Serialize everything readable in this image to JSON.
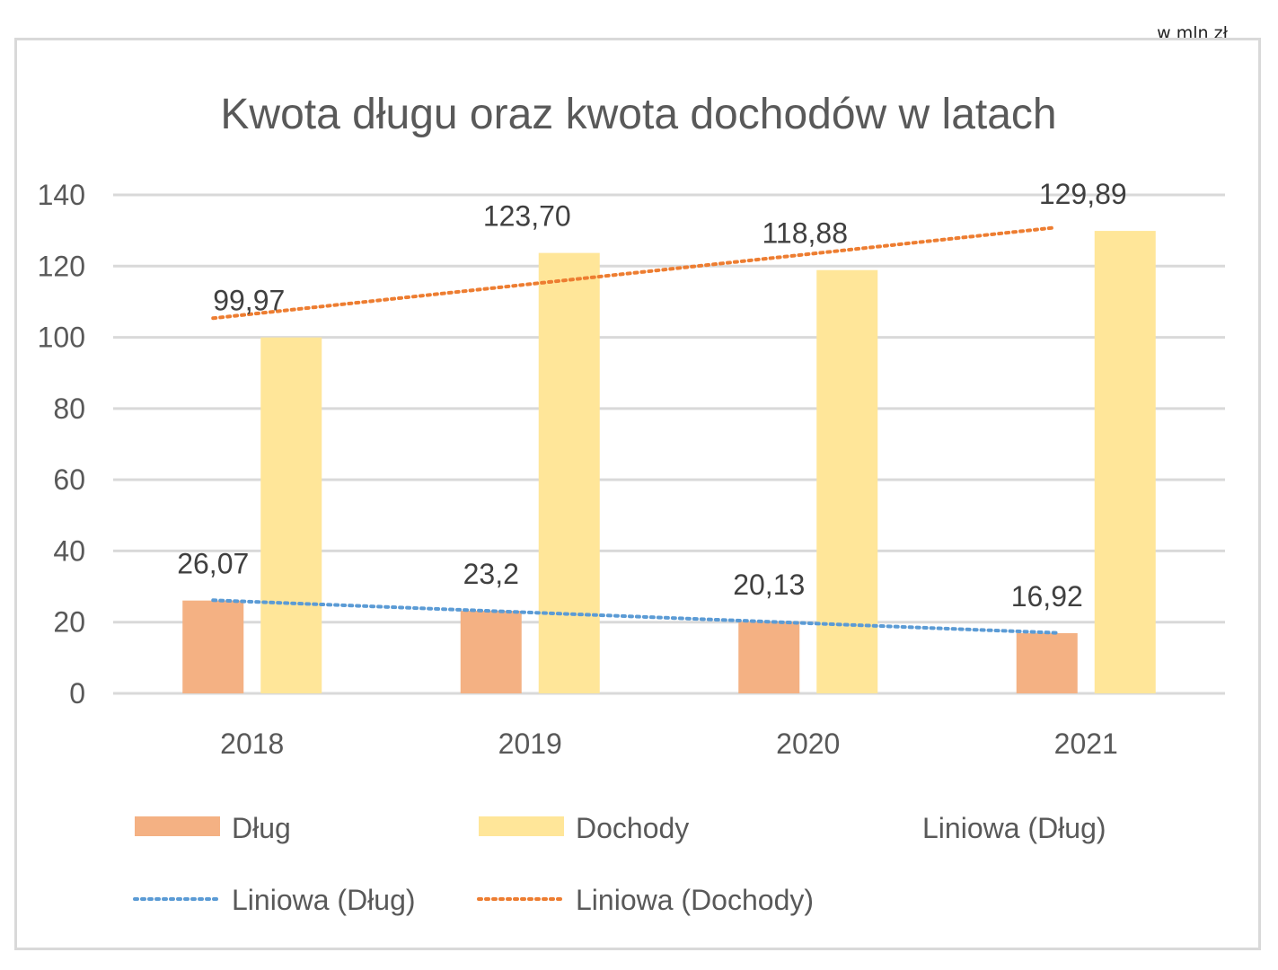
{
  "unit_note": "w mln zł",
  "colors": {
    "dlug": "#f4b183",
    "dochody": "#ffe699",
    "trend_dlug": "#5b9bd5",
    "trend_dochody": "#ed7d31",
    "grid": "#d9d9d9",
    "text": "#595959"
  },
  "chart_data": {
    "type": "bar",
    "title": "Kwota długu oraz kwota dochodów w latach",
    "categories": [
      "2018",
      "2019",
      "2020",
      "2021"
    ],
    "series": [
      {
        "name": "Dług",
        "values": [
          26.07,
          23.2,
          20.13,
          16.92
        ],
        "labels": [
          "26,07",
          "23,2",
          "20,13",
          "16,92"
        ]
      },
      {
        "name": "Dochody",
        "values": [
          99.97,
          123.7,
          118.88,
          129.89
        ],
        "labels": [
          "99,97",
          "123,70",
          "118,88",
          "129,89"
        ]
      }
    ],
    "trendlines": [
      {
        "name": "Liniowa (Dług)",
        "series": "Dług",
        "style": "dotted"
      },
      {
        "name": "Liniowa (Dochody)",
        "series": "Dochody",
        "style": "dotted"
      }
    ],
    "ylim": [
      0,
      140
    ],
    "yticks": [
      "0",
      "20",
      "40",
      "60",
      "80",
      "100",
      "120",
      "140"
    ],
    "grid": true,
    "legend": {
      "position": "bottom",
      "entries": [
        {
          "label": "Dług",
          "kind": "bar-dlug"
        },
        {
          "label": "Dochody",
          "kind": "bar-dochody"
        },
        {
          "label": "Liniowa (Dług)",
          "kind": "none"
        },
        {
          "label": "Liniowa (Dług)",
          "kind": "trend-dlug"
        },
        {
          "label": "Liniowa (Dochody)",
          "kind": "trend-dochody"
        }
      ]
    }
  }
}
